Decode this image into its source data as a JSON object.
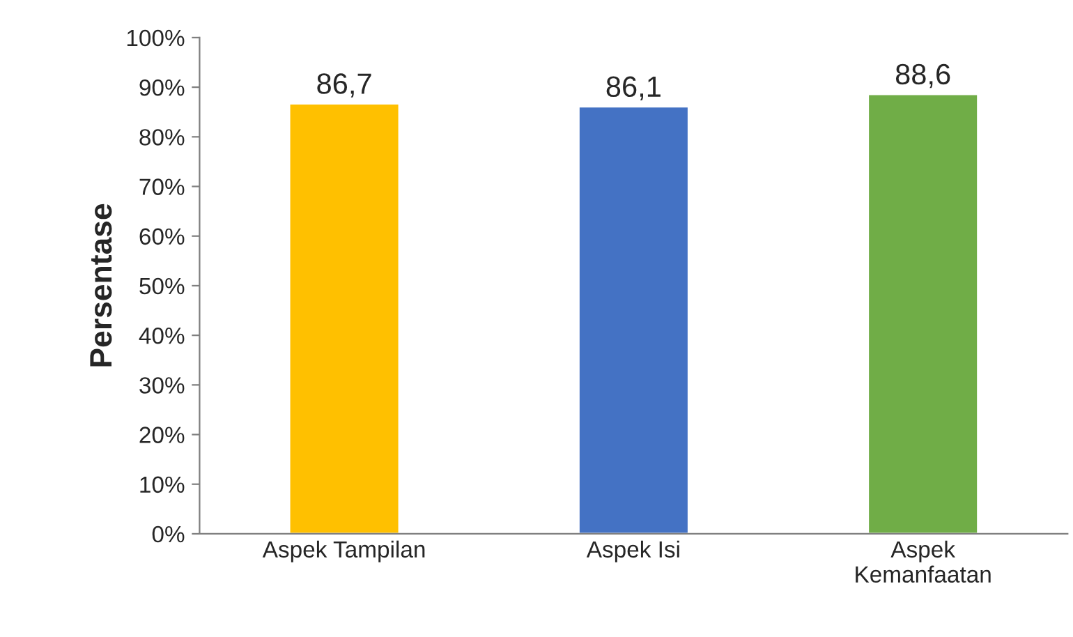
{
  "chart_data": {
    "type": "bar",
    "ylabel": "Persentase",
    "categories": [
      "Aspek Tampilan",
      "Aspek Isi",
      "Aspek\nKemanfaatan"
    ],
    "values": [
      86.7,
      86.1,
      88.6
    ],
    "colors": [
      "#ffc000",
      "#4472c4",
      "#70ad47"
    ],
    "value_labels": [
      "86,7",
      "86,1",
      "88,6"
    ],
    "ylim": [
      0,
      100
    ],
    "yticks": [
      {
        "value": 0,
        "label": "0%"
      },
      {
        "value": 10,
        "label": "10%"
      },
      {
        "value": 20,
        "label": "20%"
      },
      {
        "value": 30,
        "label": "30%"
      },
      {
        "value": 40,
        "label": "40%"
      },
      {
        "value": 50,
        "label": "50%"
      },
      {
        "value": 60,
        "label": "60%"
      },
      {
        "value": 70,
        "label": "70%"
      },
      {
        "value": 80,
        "label": "80%"
      },
      {
        "value": 90,
        "label": "90%"
      },
      {
        "value": 100,
        "label": "100%"
      }
    ],
    "grid": false,
    "legend": false
  }
}
